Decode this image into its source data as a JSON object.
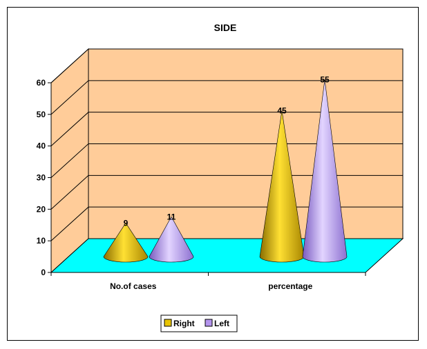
{
  "chart_data": {
    "type": "bar",
    "title": "SIDE",
    "categories": [
      "No.of cases",
      "percentage"
    ],
    "series": [
      {
        "name": "Right",
        "values": [
          9,
          45
        ],
        "color": "#e8c400"
      },
      {
        "name": "Left",
        "values": [
          11,
          55
        ],
        "color": "#b494ee"
      }
    ],
    "yticks": [
      "0",
      "10",
      "20",
      "30",
      "40",
      "50",
      "60"
    ],
    "ylim": [
      0,
      60
    ],
    "grid": true,
    "legend": "bottom",
    "shape": "cone",
    "colors": {
      "wall": "#ffcc99",
      "floor": "#00ffff"
    }
  }
}
